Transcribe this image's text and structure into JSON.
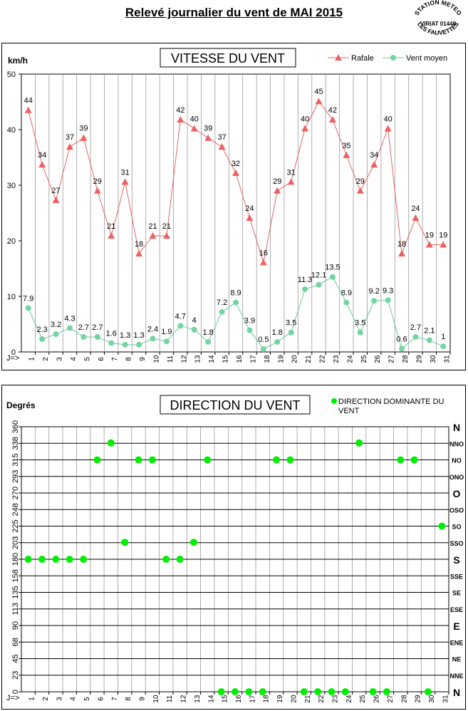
{
  "page_title": "Relevé journalier du vent de MAI 2015",
  "stamp": {
    "top": "STATION METEO",
    "middle": "VIRIAT 01440",
    "bottom": "LES FAUVETTES"
  },
  "colors": {
    "rafale": "#e06666",
    "rafale_marker": "#ee6060",
    "vent_moyen": "#6cc89a",
    "vent_moyen_marker": "#74d4a2",
    "direction": "#00ee00",
    "grid": "#999999"
  },
  "chart_data": [
    {
      "type": "line",
      "title": "VITESSE DU VENT",
      "ylabel": "km/h",
      "xlabel": "J=>",
      "ylim": [
        0,
        50
      ],
      "yticks": [
        0,
        10,
        20,
        30,
        40,
        50
      ],
      "x": [
        1,
        2,
        3,
        4,
        5,
        6,
        7,
        8,
        9,
        10,
        11,
        12,
        13,
        14,
        15,
        16,
        17,
        18,
        19,
        20,
        21,
        22,
        23,
        24,
        25,
        26,
        27,
        28,
        29,
        30,
        31
      ],
      "legend_position": "top-right",
      "grid": true,
      "series": [
        {
          "name": "Rafale",
          "marker": "triangle",
          "values": [
            44,
            34,
            27,
            37,
            39,
            29,
            21,
            31,
            18,
            21,
            21,
            42,
            40,
            39,
            37,
            32,
            24,
            16,
            29,
            31,
            40,
            45,
            42,
            35,
            29,
            34,
            40,
            18,
            24,
            19,
            19
          ],
          "plot_values": [
            43.5,
            33.7,
            27.3,
            36.9,
            38.5,
            29.0,
            20.9,
            30.6,
            17.7,
            20.9,
            20.9,
            41.8,
            40.2,
            38.5,
            36.9,
            32.2,
            24.1,
            16.1,
            29.0,
            30.6,
            40.2,
            45.1,
            41.8,
            35.4,
            29.0,
            33.7,
            40.2,
            17.7,
            24.1,
            19.3,
            19.3
          ]
        },
        {
          "name": "Vent moyen",
          "marker": "circle",
          "values": [
            7.9,
            2.3,
            3.2,
            4.3,
            2.7,
            2.7,
            1.6,
            1.3,
            1.3,
            2.4,
            1.9,
            4.7,
            4,
            1.8,
            7.2,
            8.9,
            3.9,
            0.5,
            1.8,
            3.5,
            11.3,
            12.1,
            13.5,
            8.9,
            3.5,
            9.2,
            9.3,
            0.6,
            2.7,
            2.1,
            1
          ],
          "labels": [
            "7.9",
            "2.3",
            "3.2",
            "4.3",
            "2.7",
            "2.7",
            "1.6",
            "1.3",
            "1.3",
            "2.4",
            "1.9",
            "4.7",
            "4",
            "1.8",
            "7.2",
            "8.9",
            "3.9",
            "0.5",
            "1.8",
            "3.5",
            "11.3",
            "12.1",
            "13.5",
            "8.9",
            "3.5",
            "9.2",
            "9.3",
            "0.6",
            "2.7",
            "2.1",
            "1"
          ]
        }
      ]
    },
    {
      "type": "scatter",
      "title": "DIRECTION DU VENT",
      "ylabel": "Degrés",
      "xlabel": "J=>",
      "ylim": [
        0,
        360
      ],
      "yticks": [
        "0",
        "23",
        "45",
        "68",
        "90",
        "113",
        "135",
        "158",
        "180",
        "203",
        "225",
        "248",
        "270",
        "293",
        "315",
        "338",
        "360"
      ],
      "direction_labels": [
        "N",
        "NNE",
        "NE",
        "ENE",
        "E",
        "ESE",
        "SE",
        "SSE",
        "S",
        "SSO",
        "SO",
        "OSO",
        "O",
        "ONO",
        "NO",
        "NNO",
        "N"
      ],
      "x": [
        1,
        2,
        3,
        4,
        5,
        6,
        7,
        8,
        9,
        10,
        11,
        12,
        13,
        14,
        15,
        16,
        17,
        18,
        19,
        20,
        21,
        22,
        23,
        24,
        25,
        26,
        27,
        28,
        29,
        30,
        31
      ],
      "legend_position": "top-right",
      "grid": true,
      "series": [
        {
          "name": "DIRECTION DOMINANTE DU VENT",
          "marker": "circle",
          "values": [
            180,
            180,
            180,
            180,
            180,
            315,
            338,
            203,
            315,
            315,
            180,
            180,
            203,
            315,
            0,
            0,
            0,
            0,
            315,
            315,
            0,
            0,
            0,
            0,
            338,
            0,
            0,
            315,
            315,
            0,
            225
          ]
        }
      ]
    }
  ]
}
